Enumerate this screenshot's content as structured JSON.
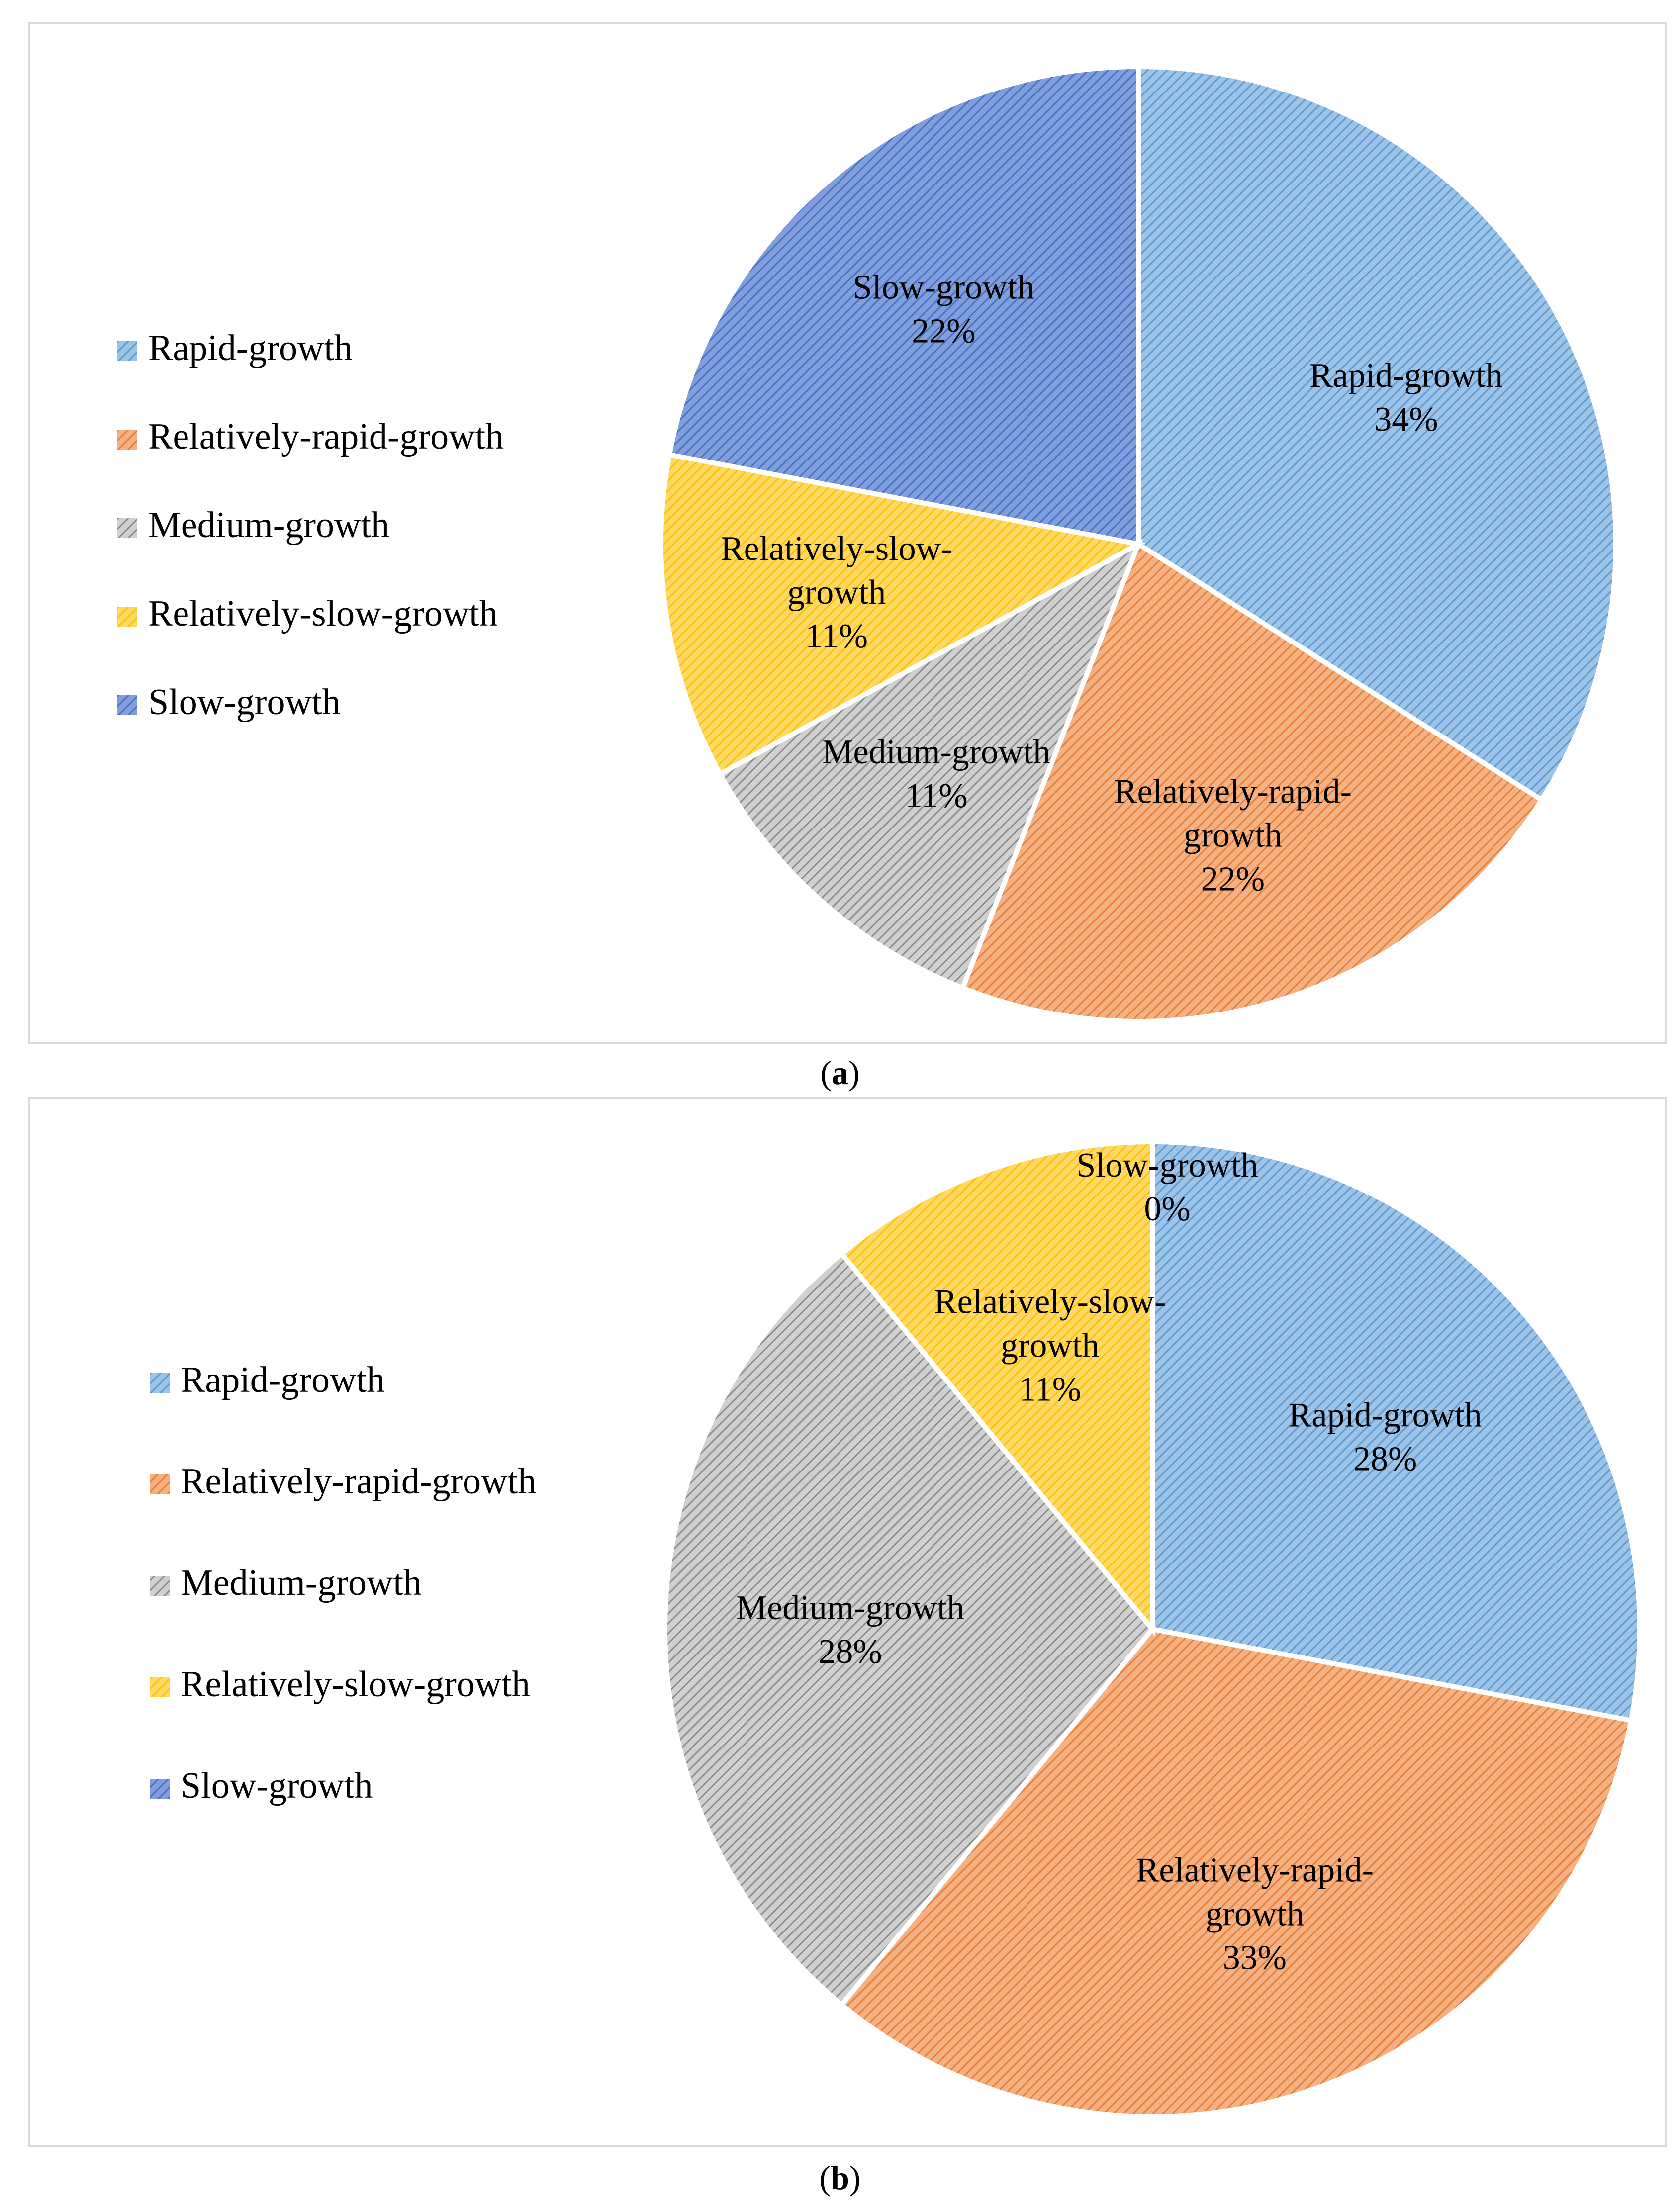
{
  "chart_data": [
    {
      "type": "pie",
      "panel": "a",
      "caption_letter": "a",
      "legend_position": "left",
      "slices": [
        {
          "name": "Rapid-growth",
          "value": 34,
          "label": [
            "Rapid-growth",
            "34%"
          ],
          "color": "#9dc3e6",
          "stripe": "#5b9bd5"
        },
        {
          "name": "Relatively-rapid-growth",
          "value": 22,
          "label": [
            "Relatively-rapid-",
            "growth",
            "22%"
          ],
          "color": "#f4b183",
          "stripe": "#ed7d31"
        },
        {
          "name": "Medium-growth",
          "value": 11,
          "label": [
            "Medium-growth",
            "11%"
          ],
          "color": "#d0d0d0",
          "stripe": "#8c8c8c"
        },
        {
          "name": "Relatively-slow-growth",
          "value": 11,
          "label": [
            "Relatively-slow-",
            "growth",
            "11%"
          ],
          "color": "#ffd966",
          "stripe": "#ffc000"
        },
        {
          "name": "Slow-growth",
          "value": 22,
          "label": [
            "Slow-growth",
            "22%"
          ],
          "color": "#7f9edb",
          "stripe": "#4472c4"
        }
      ]
    },
    {
      "type": "pie",
      "panel": "b",
      "caption_letter": "b",
      "legend_position": "left",
      "slices": [
        {
          "name": "Rapid-growth",
          "value": 28,
          "label": [
            "Rapid-growth",
            "28%"
          ],
          "color": "#9dc3e6",
          "stripe": "#5b9bd5"
        },
        {
          "name": "Relatively-rapid-growth",
          "value": 33,
          "label": [
            "Relatively-rapid-",
            "growth",
            "33%"
          ],
          "color": "#f4b183",
          "stripe": "#ed7d31"
        },
        {
          "name": "Medium-growth",
          "value": 28,
          "label": [
            "Medium-growth",
            "28%"
          ],
          "color": "#d0d0d0",
          "stripe": "#8c8c8c"
        },
        {
          "name": "Relatively-slow-growth",
          "value": 11,
          "label": [
            "Relatively-slow-",
            "growth",
            "11%"
          ],
          "color": "#ffd966",
          "stripe": "#ffc000"
        },
        {
          "name": "Slow-growth",
          "value": 0,
          "label": [
            "Slow-growth",
            "0%"
          ],
          "color": "#7f9edb",
          "stripe": "#4472c4"
        }
      ]
    }
  ]
}
